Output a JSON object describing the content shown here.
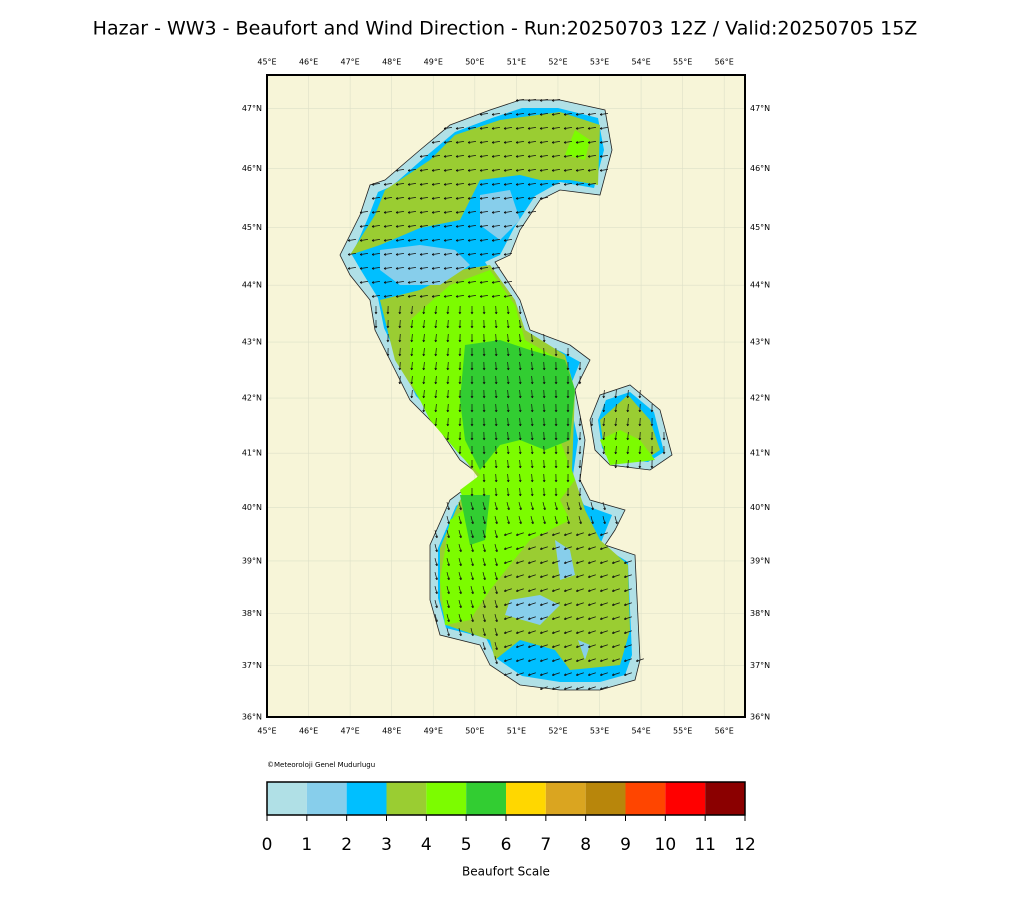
{
  "title": "Hazar - WW3 - Beaufort and Wind Direction - Run:20250703 12Z / Valid:20250705 15Z",
  "map": {
    "type": "map",
    "xlim": [
      45,
      56.5
    ],
    "ylim": [
      36,
      47.55
    ],
    "xticks": [
      {
        "value": 45,
        "label": "45°E"
      },
      {
        "value": 46,
        "label": "46°E"
      },
      {
        "value": 47,
        "label": "47°E"
      },
      {
        "value": 48,
        "label": "48°E"
      },
      {
        "value": 49,
        "label": "49°E"
      },
      {
        "value": 50,
        "label": "50°E"
      },
      {
        "value": 51,
        "label": "51°E"
      },
      {
        "value": 52,
        "label": "52°E"
      },
      {
        "value": 53,
        "label": "53°E"
      },
      {
        "value": 54,
        "label": "54°E"
      },
      {
        "value": 55,
        "label": "55°E"
      },
      {
        "value": 56,
        "label": "56°E"
      }
    ],
    "yticks": [
      {
        "value": 36,
        "label": "36°N"
      },
      {
        "value": 37,
        "label": "37°N"
      },
      {
        "value": 38,
        "label": "38°N"
      },
      {
        "value": 39,
        "label": "39°N"
      },
      {
        "value": 40,
        "label": "40°N"
      },
      {
        "value": 41,
        "label": "41°N"
      },
      {
        "value": 42,
        "label": "42°N"
      },
      {
        "value": 43,
        "label": "43°N"
      },
      {
        "value": 44,
        "label": "44°N"
      },
      {
        "value": 45,
        "label": "45°N"
      },
      {
        "value": 46,
        "label": "46°N"
      },
      {
        "value": 47,
        "label": "47°N"
      }
    ],
    "grid": true
  },
  "copyright": "©Meteoroloji Genel Mudurlugu",
  "colorbar": {
    "bounds": [
      0,
      1,
      2,
      3,
      4,
      5,
      6,
      7,
      8,
      9,
      10,
      11,
      12
    ],
    "colors": [
      "#b0e0e6",
      "#87ceeb",
      "#00bfff",
      "#9acd32",
      "#7cfc00",
      "#32cd32",
      "#ffd700",
      "#daa520",
      "#b8860b",
      "#ff4500",
      "#ff0000",
      "#8b0000"
    ],
    "label": "Beaufort Scale"
  }
}
